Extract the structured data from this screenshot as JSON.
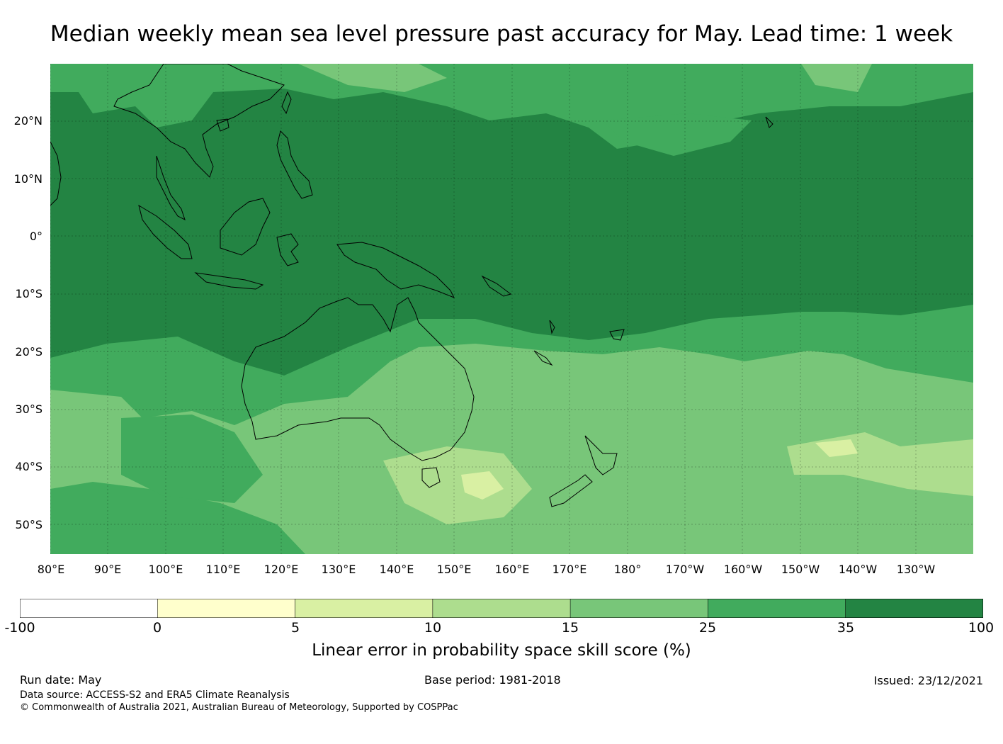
{
  "title": "Median weekly mean sea level pressure past accuracy for May. Lead time: 1 week",
  "map": {
    "lat_labels": [
      "20°N",
      "10°N",
      "0°",
      "10°S",
      "20°S",
      "30°S",
      "40°S",
      "50°S"
    ],
    "lon_labels": [
      "80°E",
      "90°E",
      "100°E",
      "110°E",
      "120°E",
      "130°E",
      "140°E",
      "150°E",
      "160°E",
      "170°E",
      "180°",
      "170°W",
      "160°W",
      "150°W",
      "140°W",
      "130°W"
    ],
    "lat_range": [
      -55,
      30
    ],
    "lon_range": [
      80,
      240
    ],
    "regions": [
      {
        "name": "tropical-high-skill",
        "category": "35-100"
      },
      {
        "name": "mid-latitude-moderate",
        "category": "25-35"
      },
      {
        "name": "southern-lower",
        "category": "15-25"
      },
      {
        "name": "tasman-patch",
        "category": "10-15"
      }
    ]
  },
  "colorbar": {
    "label": "Linear error in probability space skill score (%)",
    "ticks": [
      "-100",
      "0",
      "5",
      "10",
      "15",
      "25",
      "35",
      "100"
    ],
    "colors": [
      "#ffffff",
      "#ffffcc",
      "#d9f0a3",
      "#addd8e",
      "#78c679",
      "#41ab5d",
      "#238443"
    ]
  },
  "footer": {
    "run_date": "Run date: May",
    "base_period": "Base period: 1981-2018",
    "issued": "Issued: 23/12/2021",
    "data_source": "Data source: ACCESS-S2 and ERA5 Climate Reanalysis",
    "copyright": "© Commonwealth of Australia 2021, Australian Bureau of Meteorology, Supported by COSPPac"
  }
}
